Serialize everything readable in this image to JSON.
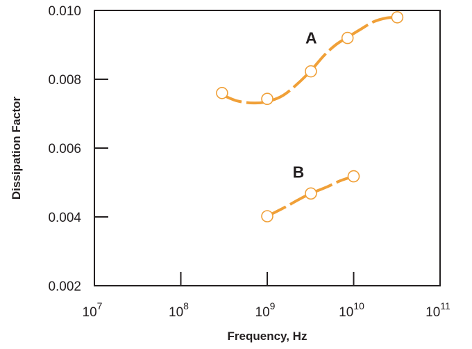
{
  "chart_data": {
    "type": "line",
    "title": "",
    "xlabel": "Frequency, Hz",
    "ylabel": "Dissipation Factor",
    "x_scale": "log",
    "xlim": [
      10000000,
      100000000000
    ],
    "ylim": [
      0.002,
      0.01
    ],
    "x_ticks": [
      {
        "value": 10000000,
        "base": "10",
        "exp": "7"
      },
      {
        "value": 100000000,
        "base": "10",
        "exp": "8"
      },
      {
        "value": 1000000000,
        "base": "10",
        "exp": "9"
      },
      {
        "value": 10000000000,
        "base": "10",
        "exp": "10"
      },
      {
        "value": 100000000000,
        "base": "10",
        "exp": "11"
      }
    ],
    "y_ticks": [
      {
        "value": 0.002,
        "label": "0.002"
      },
      {
        "value": 0.004,
        "label": "0.004"
      },
      {
        "value": 0.006,
        "label": "0.006"
      },
      {
        "value": 0.008,
        "label": "0.008"
      },
      {
        "value": 0.01,
        "label": "0.010"
      }
    ],
    "grid": false,
    "legend": "none",
    "line_color": "#f0a038",
    "series": [
      {
        "name": "A",
        "points": [
          {
            "x": 300000000,
            "y": 0.0076
          },
          {
            "x": 1000000000,
            "y": 0.00743
          },
          {
            "x": 3200000000,
            "y": 0.00823
          },
          {
            "x": 8500000000,
            "y": 0.0092
          },
          {
            "x": 32000000000,
            "y": 0.0098
          }
        ],
        "curve": [
          [
            300000000,
            0.00755
          ],
          [
            450000000,
            0.00737
          ],
          [
            700000000,
            0.00731
          ],
          [
            1000000000,
            0.00735
          ],
          [
            1500000000,
            0.00752
          ],
          [
            2200000000,
            0.00785
          ],
          [
            3200000000,
            0.00825
          ],
          [
            4500000000,
            0.00868
          ],
          [
            6200000000,
            0.009
          ],
          [
            8500000000,
            0.00922
          ],
          [
            12000000000,
            0.00945
          ],
          [
            17000000000,
            0.00967
          ],
          [
            24000000000,
            0.00978
          ],
          [
            32000000000,
            0.0098
          ]
        ],
        "label_at": [
          4500000000,
          0.0092
        ]
      },
      {
        "name": "B",
        "points": [
          {
            "x": 1000000000,
            "y": 0.00402
          },
          {
            "x": 3200000000,
            "y": 0.00468
          },
          {
            "x": 10000000000,
            "y": 0.00518
          }
        ],
        "curve": [
          [
            1000000000,
            0.00402
          ],
          [
            1600000000,
            0.00428
          ],
          [
            2300000000,
            0.0045
          ],
          [
            3200000000,
            0.00468
          ],
          [
            5000000000,
            0.00488
          ],
          [
            7000000000,
            0.00505
          ],
          [
            10000000000,
            0.00518
          ]
        ],
        "label_at": [
          3200000000,
          0.0053
        ]
      }
    ]
  }
}
